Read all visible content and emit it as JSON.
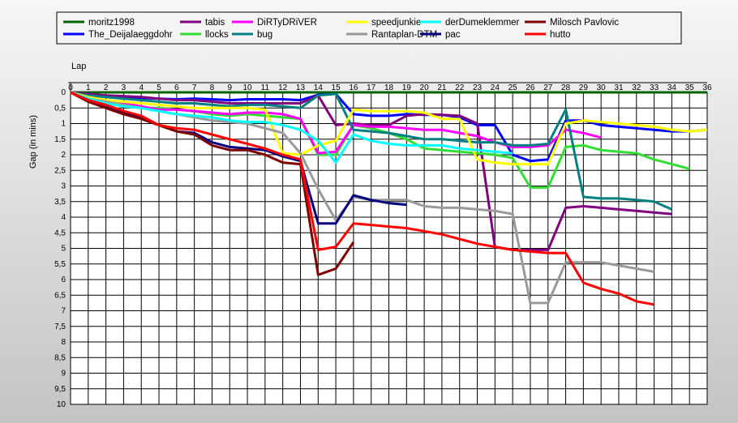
{
  "chart_data": {
    "type": "line",
    "xlabel": "Lap",
    "ylabel": "Gap (in mins)",
    "xlim": [
      0,
      36
    ],
    "ylim": [
      0,
      10
    ],
    "y_inverted": true,
    "grid": true,
    "legend_position": "top",
    "x_ticks": [
      "0",
      "1",
      "2",
      "3",
      "4",
      "5",
      "6",
      "7",
      "8",
      "9",
      "10",
      "11",
      "12",
      "13",
      "14",
      "15",
      "16",
      "17",
      "18",
      "19",
      "20",
      "21",
      "22",
      "23",
      "24",
      "25",
      "26",
      "27",
      "28",
      "29",
      "30",
      "31",
      "32",
      "33",
      "34",
      "35",
      "36"
    ],
    "y_ticks": [
      "0",
      "0,5",
      "1",
      "1,5",
      "2",
      "2,5",
      "3",
      "3,5",
      "4",
      "4,5",
      "5",
      "5,5",
      "6",
      "6,5",
      "7",
      "7,5",
      "8",
      "8,5",
      "9",
      "9,5",
      "10"
    ],
    "series": [
      {
        "name": "moritz1998",
        "color": "#006400",
        "x": [
          0,
          13,
          14,
          15,
          16,
          17,
          18,
          19,
          20,
          21,
          22,
          23,
          24,
          25,
          26,
          27,
          28,
          29,
          30,
          31,
          32,
          33,
          34,
          35,
          36
        ],
        "y": [
          0,
          0,
          0,
          0,
          0,
          0,
          0,
          0,
          0,
          0,
          0,
          0,
          0,
          0,
          0,
          0,
          0,
          0,
          0,
          0,
          0,
          0,
          0,
          0,
          0
        ]
      },
      {
        "name": "The_Deijalaeggdohr",
        "color": "#0000ff",
        "x": [
          0,
          1,
          2,
          3,
          4,
          5,
          6,
          7,
          8,
          9,
          10,
          11,
          12,
          13,
          14,
          15,
          16,
          17,
          18,
          19,
          20,
          21,
          22,
          23,
          24,
          25,
          26,
          27,
          28,
          29,
          30,
          31,
          32,
          33,
          34,
          35,
          36
        ],
        "y": [
          0,
          0.1,
          0.12,
          0.15,
          0.18,
          0.2,
          0.22,
          0.2,
          0.22,
          0.25,
          0.22,
          0.22,
          0.22,
          0.25,
          0.08,
          0.05,
          0.7,
          0.75,
          0.75,
          0.7,
          0.72,
          0.72,
          0.8,
          1.05,
          1.05,
          2,
          2.2,
          2.15,
          0.9,
          0.9,
          1.05,
          1.1,
          1.15,
          1.2,
          1.25,
          1.25,
          1.2
        ]
      },
      {
        "name": "tabis",
        "color": "#800080",
        "x": [
          0,
          1,
          2,
          3,
          4,
          5,
          6,
          7,
          8,
          9,
          10,
          11,
          12,
          13,
          14,
          15,
          16,
          17,
          18,
          19,
          20,
          21,
          22,
          23,
          24,
          25,
          26,
          27,
          28,
          29,
          30,
          31,
          32,
          33,
          34
        ],
        "y": [
          0,
          0.05,
          0.1,
          0.12,
          0.15,
          0.2,
          0.25,
          0.25,
          0.3,
          0.35,
          0.35,
          0.35,
          0.35,
          0.35,
          0.1,
          1.05,
          1.0,
          1.05,
          1.05,
          0.75,
          0.7,
          0.72,
          0.75,
          1.0,
          4.95,
          5.05,
          5.05,
          5.05,
          3.7,
          3.65,
          3.7,
          3.75,
          3.8,
          3.85,
          3.9
        ]
      },
      {
        "name": "llocks",
        "color": "#33dd33",
        "x": [
          0,
          1,
          2,
          3,
          4,
          5,
          6,
          7,
          8,
          9,
          10,
          11,
          12,
          13,
          14,
          15,
          16,
          17,
          18,
          19,
          20,
          21,
          22,
          23,
          24,
          25,
          26,
          27,
          28,
          29,
          30,
          31,
          32,
          33,
          34,
          35
        ],
        "y": [
          0,
          0.2,
          0.3,
          0.4,
          0.5,
          0.5,
          0.55,
          0.6,
          0.7,
          0.75,
          0.7,
          0.75,
          0.8,
          0.85,
          2.0,
          2.0,
          1.05,
          1.15,
          1.3,
          1.5,
          1.8,
          1.85,
          1.9,
          1.95,
          2.0,
          2.1,
          3.05,
          3.05,
          1.75,
          1.7,
          1.85,
          1.9,
          1.95,
          2.15,
          2.3,
          2.45
        ]
      },
      {
        "name": "DiRTyDRiVER",
        "color": "#ff00ff",
        "x": [
          0,
          1,
          2,
          3,
          4,
          5,
          6,
          7,
          8,
          9,
          10,
          11,
          12,
          13,
          14,
          15,
          16,
          17,
          18,
          19,
          20,
          21,
          22,
          23,
          24,
          25,
          26,
          27,
          28,
          29,
          30
        ],
        "y": [
          0,
          0.2,
          0.3,
          0.35,
          0.45,
          0.55,
          0.55,
          0.6,
          0.65,
          0.7,
          0.65,
          0.65,
          0.7,
          0.85,
          1.95,
          1.9,
          1.05,
          1.1,
          1.1,
          1.15,
          1.2,
          1.2,
          1.3,
          1.4,
          1.6,
          1.75,
          1.75,
          1.7,
          1.2,
          1.3,
          1.45
        ]
      },
      {
        "name": "bug",
        "color": "#008080",
        "x": [
          0,
          1,
          2,
          3,
          4,
          5,
          6,
          7,
          8,
          9,
          10,
          11,
          12,
          13,
          14,
          15,
          16,
          17,
          18,
          19,
          20,
          21,
          22,
          23,
          24,
          25,
          26,
          27,
          28,
          29,
          30,
          31,
          32,
          33,
          34
        ],
        "y": [
          0,
          0.1,
          0.15,
          0.2,
          0.25,
          0.3,
          0.35,
          0.35,
          0.4,
          0.45,
          0.4,
          0.4,
          0.45,
          0.5,
          0.1,
          0.05,
          1.2,
          1.25,
          1.3,
          1.4,
          1.5,
          1.5,
          1.55,
          1.6,
          1.6,
          1.7,
          1.7,
          1.65,
          0.55,
          3.35,
          3.4,
          3.4,
          3.45,
          3.5,
          3.75
        ]
      },
      {
        "name": "speedjunkie",
        "color": "#ffff00",
        "x": [
          0,
          1,
          2,
          3,
          4,
          5,
          6,
          7,
          8,
          9,
          10,
          11,
          12,
          13,
          14,
          15,
          16,
          17,
          18,
          19,
          20,
          21,
          22,
          23,
          24,
          25,
          26,
          27,
          28,
          29,
          30,
          31,
          32,
          33,
          34,
          35,
          36
        ],
        "y": [
          0,
          0.15,
          0.25,
          0.3,
          0.35,
          0.4,
          0.45,
          0.5,
          0.5,
          0.5,
          0.5,
          0.55,
          1.95,
          2.0,
          1.7,
          1.55,
          0.55,
          0.6,
          0.6,
          0.6,
          0.65,
          0.85,
          0.85,
          2.15,
          2.25,
          2.3,
          2.3,
          2.3,
          1.0,
          0.9,
          0.95,
          1.0,
          1.05,
          1.1,
          1.2,
          1.25,
          1.2
        ]
      },
      {
        "name": "Rantaplan-DTM",
        "color": "#999999",
        "x": [
          0,
          1,
          2,
          3,
          4,
          5,
          6,
          7,
          8,
          9,
          10,
          11,
          12,
          13,
          14,
          15,
          16,
          17,
          18,
          19,
          20,
          21,
          22,
          23,
          24,
          25,
          26,
          27,
          28,
          29,
          30,
          31,
          32,
          33
        ],
        "y": [
          0,
          0.2,
          0.3,
          0.4,
          0.5,
          0.6,
          0.7,
          0.8,
          0.9,
          0.95,
          1.0,
          1.15,
          1.3,
          1.95,
          3.1,
          4.1,
          3.35,
          3.45,
          3.45,
          3.45,
          3.65,
          3.7,
          3.7,
          3.75,
          3.8,
          3.9,
          6.75,
          6.75,
          5.45,
          5.45,
          5.45,
          5.55,
          5.65,
          5.75
        ]
      },
      {
        "name": "derDumeklemmer",
        "color": "#00ffff",
        "x": [
          0,
          1,
          2,
          3,
          4,
          5,
          6,
          7,
          8,
          9,
          10,
          11,
          12,
          13,
          14,
          15,
          16,
          17,
          18,
          19,
          20,
          21,
          22,
          23,
          24,
          25
        ],
        "y": [
          0,
          0.2,
          0.35,
          0.45,
          0.5,
          0.6,
          0.7,
          0.75,
          0.8,
          0.9,
          0.95,
          0.95,
          1.05,
          1.2,
          1.55,
          2.25,
          1.35,
          1.55,
          1.65,
          1.7,
          1.7,
          1.7,
          1.8,
          1.85,
          1.9,
          1.95
        ]
      },
      {
        "name": "pac",
        "color": "#000080",
        "x": [
          0,
          1,
          2,
          3,
          4,
          5,
          6,
          7,
          8,
          9,
          10,
          11,
          12,
          13,
          14,
          15,
          16,
          17,
          18,
          19
        ],
        "y": [
          0,
          0.25,
          0.45,
          0.65,
          0.8,
          1.05,
          1.25,
          1.3,
          1.6,
          1.75,
          1.8,
          1.85,
          2.05,
          2.2,
          4.2,
          4.2,
          3.3,
          3.45,
          3.55,
          3.6
        ]
      },
      {
        "name": "Milosch Pavlovic",
        "color": "#800000",
        "x": [
          0,
          1,
          2,
          3,
          4,
          5,
          6,
          7,
          8,
          9,
          10,
          11,
          12,
          13,
          14,
          15,
          16
        ],
        "y": [
          0,
          0.3,
          0.5,
          0.7,
          0.85,
          1.05,
          1.25,
          1.35,
          1.7,
          1.85,
          1.85,
          2.0,
          2.25,
          2.3,
          5.85,
          5.65,
          4.8
        ]
      },
      {
        "name": "hutto",
        "color": "#ff0000",
        "x": [
          0,
          1,
          2,
          3,
          4,
          5,
          6,
          7,
          8,
          9,
          10,
          11,
          12,
          13,
          14,
          15,
          16,
          17,
          18,
          19,
          20,
          21,
          22,
          23,
          24,
          25,
          26,
          27,
          28,
          29,
          30,
          31,
          32,
          33
        ],
        "y": [
          0,
          0.25,
          0.4,
          0.6,
          0.75,
          1.05,
          1.15,
          1.2,
          1.35,
          1.5,
          1.65,
          1.8,
          2.0,
          2.15,
          5.05,
          4.95,
          4.2,
          4.25,
          4.3,
          4.35,
          4.45,
          4.55,
          4.7,
          4.85,
          4.95,
          5.05,
          5.1,
          5.15,
          5.15,
          6.1,
          6.3,
          6.45,
          6.7,
          6.8
        ]
      }
    ]
  }
}
